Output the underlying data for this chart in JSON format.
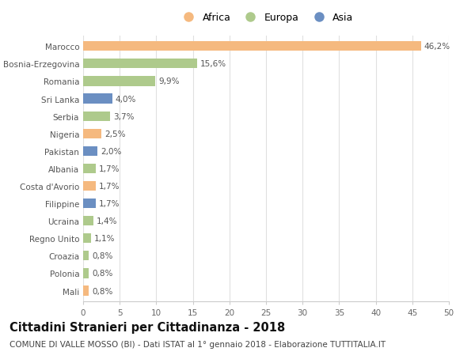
{
  "categories": [
    "Marocco",
    "Bosnia-Erzegovina",
    "Romania",
    "Sri Lanka",
    "Serbia",
    "Nigeria",
    "Pakistan",
    "Albania",
    "Costa d'Avorio",
    "Filippine",
    "Ucraina",
    "Regno Unito",
    "Croazia",
    "Polonia",
    "Mali"
  ],
  "values": [
    46.2,
    15.6,
    9.9,
    4.0,
    3.7,
    2.5,
    2.0,
    1.7,
    1.7,
    1.7,
    1.4,
    1.1,
    0.8,
    0.8,
    0.8
  ],
  "labels": [
    "46,2%",
    "15,6%",
    "9,9%",
    "4,0%",
    "3,7%",
    "2,5%",
    "2,0%",
    "1,7%",
    "1,7%",
    "1,7%",
    "1,4%",
    "1,1%",
    "0,8%",
    "0,8%",
    "0,8%"
  ],
  "continents": [
    "Africa",
    "Europa",
    "Europa",
    "Asia",
    "Europa",
    "Africa",
    "Asia",
    "Europa",
    "Africa",
    "Asia",
    "Europa",
    "Europa",
    "Europa",
    "Europa",
    "Africa"
  ],
  "colors": {
    "Africa": "#F5B97F",
    "Europa": "#AECA8C",
    "Asia": "#6B8FC2"
  },
  "title": "Cittadini Stranieri per Cittadinanza - 2018",
  "subtitle": "COMUNE DI VALLE MOSSO (BI) - Dati ISTAT al 1° gennaio 2018 - Elaborazione TUTTITALIA.IT",
  "xlim": [
    0,
    50
  ],
  "xticks": [
    0,
    5,
    10,
    15,
    20,
    25,
    30,
    35,
    40,
    45,
    50
  ],
  "background_color": "#ffffff",
  "grid_color": "#e0e0e0",
  "label_fontsize": 7.5,
  "title_fontsize": 10.5,
  "subtitle_fontsize": 7.5,
  "ytick_fontsize": 7.5,
  "xtick_fontsize": 7.5,
  "legend_fontsize": 9,
  "bar_height": 0.55
}
